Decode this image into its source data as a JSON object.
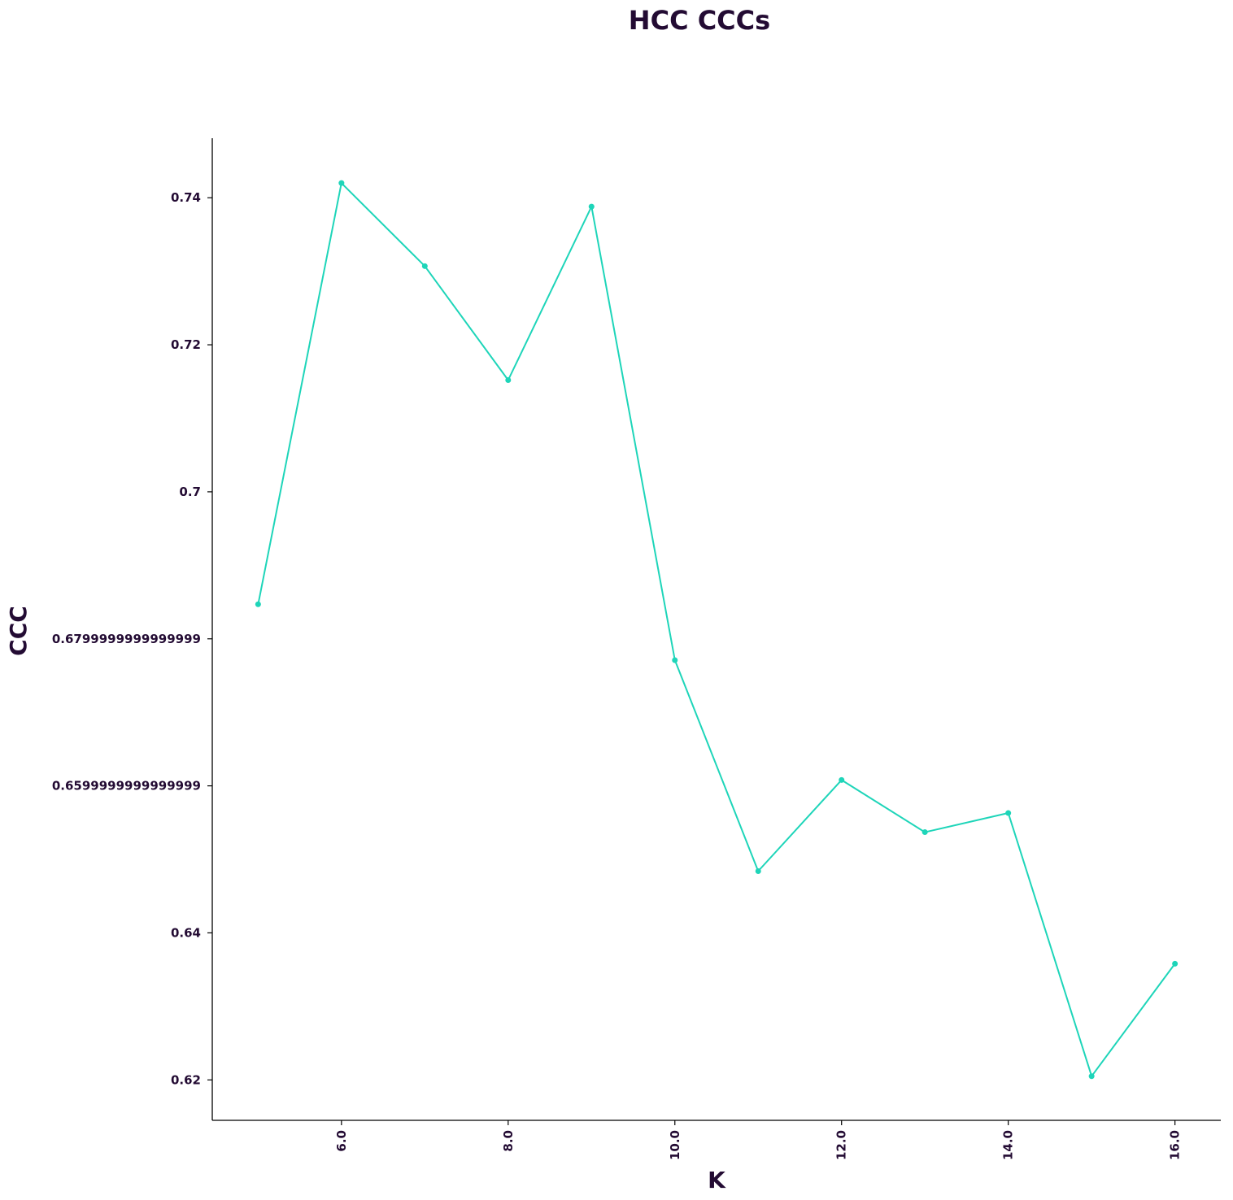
{
  "colors": {
    "text": "#230b33",
    "line": "#1ed5b9",
    "axis": "#000000"
  },
  "chart_data": {
    "type": "line",
    "title": "HCC CCCs",
    "xlabel": "K",
    "ylabel": "CCC",
    "x": [
      5,
      6,
      7,
      8,
      9,
      10,
      11,
      12,
      13,
      14,
      15,
      16
    ],
    "series": [
      {
        "values": [
          0.6847,
          0.742,
          0.7307,
          0.7152,
          0.7388,
          0.6771,
          0.6484,
          0.6608,
          0.6537,
          0.6563,
          0.6205,
          0.6358
        ]
      }
    ],
    "xlim": [
      4.45,
      16.55
    ],
    "ylim": [
      0.6145,
      0.7481
    ],
    "x_ticks": [
      6,
      8,
      10,
      12,
      14,
      16
    ],
    "x_tick_labels": [
      "6.0",
      "8.0",
      "10.0",
      "12.0",
      "14.0",
      "16.0"
    ],
    "y_ticks": [
      0.62,
      0.64,
      0.66,
      0.68,
      0.7,
      0.72,
      0.74
    ],
    "y_tick_labels": [
      "0.62",
      "0.64",
      "0.6599999999999999",
      "0.6799999999999999",
      "0.7",
      "0.72",
      "0.74"
    ],
    "grid": false,
    "legend": "none",
    "markers": true
  }
}
